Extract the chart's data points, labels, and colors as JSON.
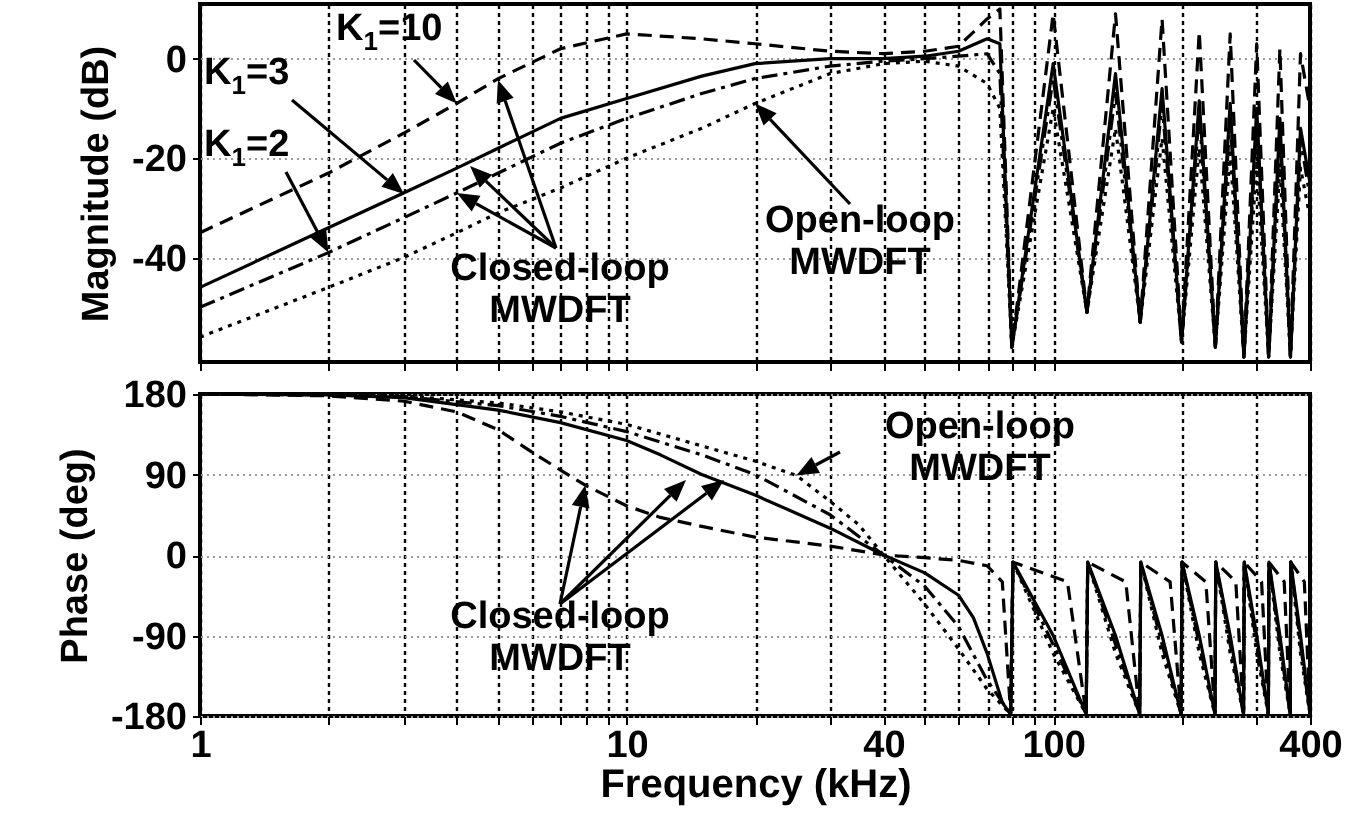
{
  "chart_data": [
    {
      "type": "line",
      "ylabel": "Magnitude (dB)",
      "xlim": [
        1,
        400
      ],
      "ylim": [
        -61,
        11
      ],
      "log": "x",
      "grid": true,
      "tick_labels": "y",
      "xticks": [
        1,
        {
          "value": 2,
          "label": null
        },
        {
          "value": 3,
          "label": null
        },
        {
          "value": 4,
          "label": null
        },
        {
          "value": 5,
          "label": null
        },
        {
          "value": 6,
          "label": null
        },
        {
          "value": 7,
          "label": null
        },
        {
          "value": 8,
          "label": null
        },
        {
          "value": 9,
          "label": null
        },
        10,
        {
          "value": 20,
          "label": null
        },
        {
          "value": 30,
          "label": null
        },
        40,
        {
          "value": 50,
          "label": null
        },
        {
          "value": 60,
          "label": null
        },
        {
          "value": 70,
          "label": null
        },
        {
          "value": 80,
          "label": null
        },
        {
          "value": 90,
          "label": null
        },
        100,
        {
          "value": 200,
          "label": null
        },
        {
          "value": 300,
          "label": null
        },
        400
      ],
      "yticks": [
        -40,
        -20,
        0
      ],
      "annotations": [
        {
          "text": "K$_{1}$=10",
          "x": 4,
          "y": -9
        },
        "K$_{1}$=3",
        {
          "text": "K$_{1}$=2",
          "x": 2,
          "y": -39
        },
        {
          "text": "Closed-loop MWDFT",
          "x": 4,
          "y": -27
        },
        {
          "text": "Open-loop MWDFT",
          "x": 20,
          "y": -9
        }
      ],
      "series": [
        {
          "color": "#000000",
          "line_style": "dashed",
          "x": [
            1,
            2,
            3,
            4,
            5,
            7,
            10,
            15,
            20,
            30,
            40,
            50,
            60,
            70,
            75,
            80,
            100,
            120,
            140,
            160,
            180,
            200,
            220,
            240,
            260,
            280,
            300,
            320,
            340,
            360,
            380,
            400
          ],
          "values": [
            -35,
            -23,
            -15,
            -9,
            -4,
            2,
            5,
            4,
            3,
            1.5,
            1,
            1.5,
            2.5,
            8,
            10,
            -58,
            9,
            -51,
            9,
            -53,
            8,
            -57,
            5.5,
            -58,
            5,
            -60,
            3,
            -60,
            2,
            -60,
            1,
            -10
          ]
        },
        {
          "color": "#000000",
          "line_style": "solid",
          "x": [
            1,
            2,
            3,
            4,
            5,
            7,
            10,
            15,
            20,
            30,
            40,
            50,
            60,
            70,
            75,
            80,
            100,
            120,
            140,
            160,
            180,
            200,
            220,
            240,
            260,
            280,
            300,
            320,
            340,
            360,
            380,
            400
          ],
          "values": [
            -46,
            -34,
            -27,
            -22,
            -18,
            -12,
            -8,
            -3.5,
            -1,
            0,
            0,
            0.5,
            1.5,
            4,
            3,
            -58,
            -1,
            -51,
            -3,
            -53,
            -6,
            -57,
            -8.5,
            -58,
            -9,
            -60,
            -10,
            -60,
            -12,
            -60,
            -14,
            -25
          ]
        },
        {
          "color": "#000000",
          "line_style": "dashdot",
          "x": [
            1,
            2,
            3,
            4,
            5,
            7,
            10,
            15,
            20,
            30,
            40,
            50,
            60,
            70,
            75,
            80,
            100,
            120,
            140,
            160,
            180,
            200,
            220,
            240,
            260,
            280,
            300,
            320,
            340,
            360,
            380,
            400
          ],
          "values": [
            -50,
            -39,
            -32,
            -27,
            -23,
            -17,
            -12,
            -7,
            -4,
            -1.5,
            -0.5,
            0,
            0.5,
            1,
            -3,
            -58,
            -4,
            -51,
            -7,
            -53,
            -9,
            -57,
            -11,
            -58,
            -12,
            -60,
            -13,
            -60,
            -15,
            -60,
            -16,
            -28
          ]
        },
        {
          "color": "#000000",
          "line_style": "dotted",
          "x": [
            1,
            2,
            3,
            4,
            5,
            7,
            10,
            15,
            20,
            30,
            40,
            50,
            60,
            70,
            75,
            80,
            100,
            120,
            140,
            160,
            180,
            200,
            220,
            240,
            260,
            280,
            300,
            320,
            340,
            360,
            380,
            400
          ],
          "values": [
            -56,
            -46,
            -40,
            -35,
            -31,
            -26,
            -20,
            -14,
            -9,
            -3,
            -1,
            -0.5,
            -1.5,
            -5,
            -10,
            -58,
            -10,
            -51,
            -14,
            -53,
            -16,
            -57,
            -18,
            -58,
            -19,
            -60,
            -21,
            -60,
            -22,
            -60,
            -22,
            -32
          ]
        }
      ]
    },
    {
      "type": "line",
      "xlabel": "Frequency (kHz)",
      "ylabel": "Phase (deg)",
      "xlim": [
        1,
        400
      ],
      "ylim": [
        -180,
        180
      ],
      "log": "x",
      "grid": true,
      "xticks": [
        1,
        {
          "value": 2,
          "label": null
        },
        {
          "value": 3,
          "label": null
        },
        {
          "value": 4,
          "label": null
        },
        {
          "value": 5,
          "label": null
        },
        {
          "value": 6,
          "label": null
        },
        {
          "value": 7,
          "label": null
        },
        {
          "value": 8,
          "label": null
        },
        {
          "value": 9,
          "label": null
        },
        10,
        {
          "value": 20,
          "label": null
        },
        {
          "value": 30,
          "label": null
        },
        40,
        {
          "value": 50,
          "label": null
        },
        {
          "value": 60,
          "label": null
        },
        {
          "value": 70,
          "label": null
        },
        {
          "value": 80,
          "label": null
        },
        {
          "value": 90,
          "label": null
        },
        100,
        {
          "value": 200,
          "label": null
        },
        {
          "value": 300,
          "label": null
        },
        400
      ],
      "yticks": [
        -180,
        -90,
        0,
        90,
        180
      ],
      "annotations": [
        {
          "text": "Open-loop MWDFT",
          "x": 25,
          "y": 89
        },
        {
          "text": "Closed-loop MWDFT",
          "x": 8,
          "y": 78
        }
      ],
      "series": [
        {
          "color": "#000000",
          "line_style": "dashed",
          "x": [
            1,
            2,
            3,
            4,
            5,
            6,
            7,
            8,
            10,
            12,
            15,
            20,
            30,
            40,
            50,
            60,
            70,
            76,
            79.5,
            80.5,
            108,
            119.5,
            120.5,
            148,
            159.5,
            160.5,
            188,
            199.5,
            200.5,
            228,
            239.5,
            240.5,
            268,
            279.5,
            280.5,
            308,
            319.5,
            320.5,
            348,
            359.5,
            360.5,
            388,
            400
          ],
          "values": [
            180,
            178,
            172,
            160,
            140,
            115,
            95,
            78,
            55,
            42,
            32,
            20,
            10,
            0,
            -3,
            -6,
            -12,
            -30,
            -178,
            -8,
            -30,
            -178,
            -8,
            -30,
            -178,
            -8,
            -30,
            -178,
            -8,
            -30,
            -178,
            -8,
            -30,
            -178,
            -8,
            -30,
            -178,
            -8,
            -30,
            -178,
            -8,
            -30,
            -178
          ]
        },
        {
          "color": "#000000",
          "line_style": "solid",
          "x": [
            1,
            2,
            3,
            5,
            7,
            10,
            12,
            15,
            20,
            30,
            40,
            50,
            60,
            65,
            70,
            76,
            79.5,
            80.5,
            100,
            119.5,
            120.5,
            140,
            159.5,
            160.5,
            180,
            199.5,
            200.5,
            220,
            239.5,
            240.5,
            260,
            279.5,
            280.5,
            300,
            319.5,
            320.5,
            340,
            359.5,
            360.5,
            380,
            400
          ],
          "values": [
            180,
            179,
            176,
            162,
            148,
            128,
            112,
            90,
            67,
            30,
            0,
            -20,
            -45,
            -70,
            -110,
            -165,
            -178,
            -8,
            -90,
            -178,
            -8,
            -90,
            -178,
            -8,
            -90,
            -178,
            -8,
            -90,
            -178,
            -8,
            -90,
            -178,
            -8,
            -90,
            -178,
            -8,
            -90,
            -178,
            -8,
            -90,
            -178
          ]
        },
        {
          "color": "#000000",
          "line_style": "dashdot",
          "x": [
            1,
            2,
            3,
            5,
            7,
            10,
            15,
            20,
            30,
            40,
            50,
            60,
            70,
            79.5,
            80.5,
            100,
            119.5,
            120.5,
            140,
            159.5,
            160.5,
            180,
            199.5,
            200.5,
            220,
            239.5,
            240.5,
            260,
            279.5,
            280.5,
            300,
            319.5,
            320.5,
            340,
            359.5,
            360.5,
            380,
            400
          ],
          "values": [
            180,
            179,
            177,
            167,
            155,
            138,
            112,
            90,
            45,
            0,
            -35,
            -80,
            -140,
            -178,
            -8,
            -100,
            -178,
            -8,
            -100,
            -178,
            -8,
            -100,
            -178,
            -8,
            -100,
            -178,
            -8,
            -100,
            -178,
            -8,
            -100,
            -178,
            -8,
            -100,
            -178,
            -8,
            -100,
            -178
          ]
        },
        {
          "color": "#000000",
          "line_style": "dotted",
          "x": [
            1,
            2,
            3,
            5,
            7,
            10,
            15,
            20,
            25,
            30,
            35,
            40,
            50,
            60,
            70,
            79.5,
            80.5,
            100,
            119.5,
            120.5,
            140,
            159.5,
            160.5,
            180,
            199.5,
            200.5,
            220,
            239.5,
            240.5,
            260,
            279.5,
            280.5,
            300,
            319.5,
            320.5,
            340,
            359.5,
            360.5,
            380,
            400
          ],
          "values": [
            180,
            179,
            178,
            170,
            160,
            146,
            122,
            105,
            89,
            60,
            34,
            0,
            -55,
            -105,
            -150,
            -178,
            -8,
            -110,
            -178,
            -8,
            -110,
            -178,
            -8,
            -110,
            -178,
            -8,
            -110,
            -178,
            -8,
            -110,
            -178,
            -8,
            -110,
            -178,
            -8,
            -110,
            -178,
            -8,
            -110,
            -178
          ]
        }
      ]
    }
  ]
}
